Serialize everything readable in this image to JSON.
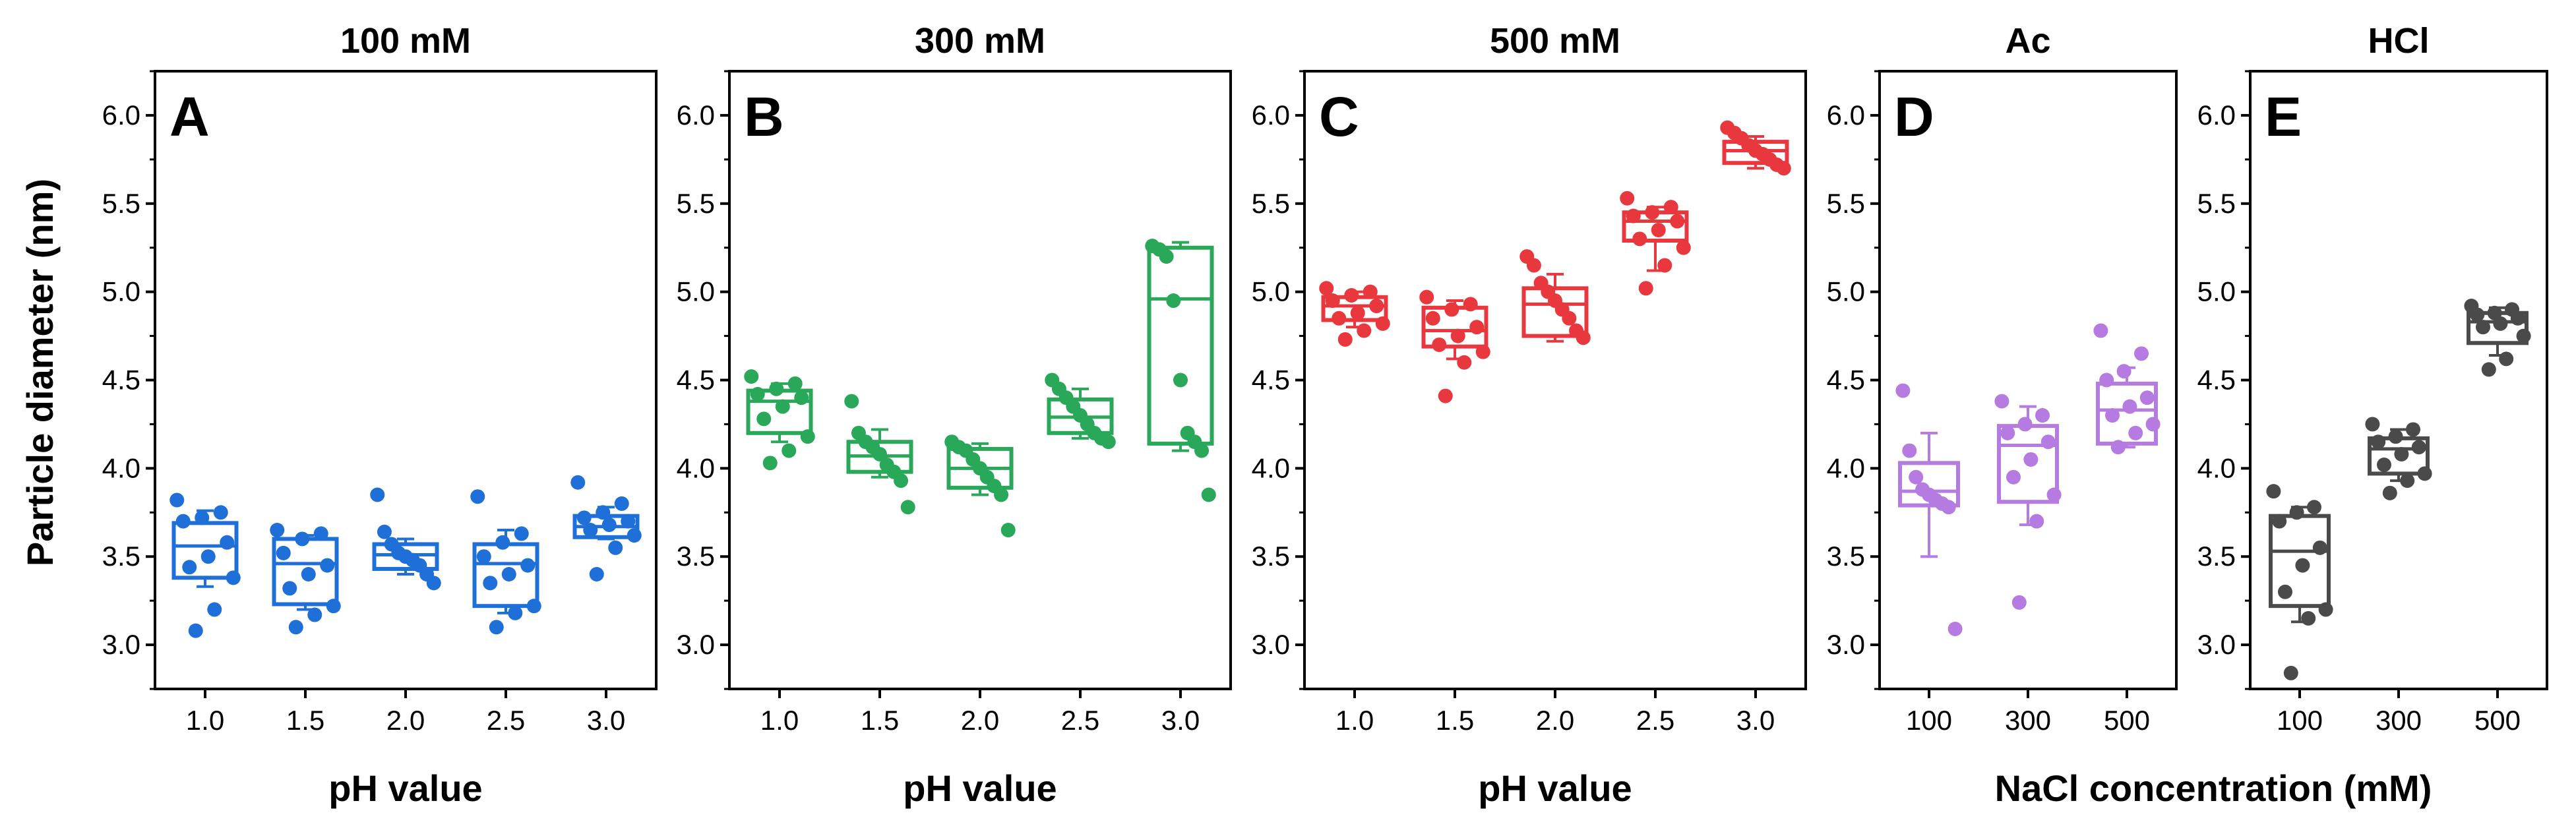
{
  "figure": {
    "ylabel": "Particle diameter (nm)",
    "xlabel_ph": "pH value",
    "xlabel_nacl": "NaCl concentration (mM)"
  },
  "chart_data": [
    {
      "type": "box",
      "panel_label": "A",
      "title": "100 mM",
      "color": "#1f6fd8",
      "xlabel": "pH value",
      "ylabel": "Particle diameter (nm)",
      "ylim": [
        2.75,
        6.25
      ],
      "yticks": [
        "3.0",
        "3.5",
        "4.0",
        "4.5",
        "5.0",
        "5.5",
        "6.0"
      ],
      "categories": [
        "1.0",
        "1.5",
        "2.0",
        "2.5",
        "3.0"
      ],
      "boxes": [
        {
          "q1": 3.38,
          "median": 3.56,
          "q3": 3.69,
          "whisker_low": 3.33,
          "whisker_high": 3.76,
          "points": [
            3.82,
            3.75,
            3.72,
            3.7,
            3.58,
            3.5,
            3.44,
            3.38,
            3.2,
            3.08
          ]
        },
        {
          "q1": 3.23,
          "median": 3.46,
          "q3": 3.6,
          "whisker_low": 3.2,
          "whisker_high": 3.62,
          "points": [
            3.65,
            3.63,
            3.6,
            3.52,
            3.45,
            3.4,
            3.32,
            3.22,
            3.17,
            3.1
          ]
        },
        {
          "q1": 3.43,
          "median": 3.51,
          "q3": 3.57,
          "whisker_low": 3.4,
          "whisker_high": 3.6,
          "points": [
            3.85,
            3.64,
            3.57,
            3.52,
            3.5,
            3.48,
            3.45,
            3.4,
            3.35
          ]
        },
        {
          "q1": 3.22,
          "median": 3.46,
          "q3": 3.57,
          "whisker_low": 3.18,
          "whisker_high": 3.65,
          "points": [
            3.84,
            3.63,
            3.58,
            3.5,
            3.45,
            3.4,
            3.35,
            3.22,
            3.18,
            3.1
          ]
        },
        {
          "q1": 3.61,
          "median": 3.67,
          "q3": 3.73,
          "whisker_low": 3.6,
          "whisker_high": 3.78,
          "points": [
            3.92,
            3.8,
            3.75,
            3.72,
            3.7,
            3.68,
            3.65,
            3.62,
            3.55,
            3.4
          ]
        }
      ]
    },
    {
      "type": "box",
      "panel_label": "B",
      "title": "300 mM",
      "color": "#2aa85a",
      "xlabel": "pH value",
      "ylabel": "",
      "ylim": [
        2.75,
        6.25
      ],
      "yticks": [
        "3.0",
        "3.5",
        "4.0",
        "4.5",
        "5.0",
        "5.5",
        "6.0"
      ],
      "categories": [
        "1.0",
        "1.5",
        "2.0",
        "2.5",
        "3.0"
      ],
      "boxes": [
        {
          "q1": 4.2,
          "median": 4.38,
          "q3": 4.44,
          "whisker_low": 4.15,
          "whisker_high": 4.48,
          "points": [
            4.52,
            4.48,
            4.45,
            4.42,
            4.4,
            4.35,
            4.28,
            4.18,
            4.1,
            4.03
          ]
        },
        {
          "q1": 3.98,
          "median": 4.07,
          "q3": 4.15,
          "whisker_low": 3.95,
          "whisker_high": 4.22,
          "points": [
            4.38,
            4.2,
            4.15,
            4.12,
            4.08,
            4.02,
            3.98,
            3.93,
            3.78
          ]
        },
        {
          "q1": 3.89,
          "median": 4.0,
          "q3": 4.11,
          "whisker_low": 3.85,
          "whisker_high": 4.14,
          "points": [
            4.15,
            4.12,
            4.1,
            4.05,
            4.0,
            3.95,
            3.9,
            3.85,
            3.65
          ]
        },
        {
          "q1": 4.2,
          "median": 4.29,
          "q3": 4.39,
          "whisker_low": 4.17,
          "whisker_high": 4.45,
          "points": [
            4.5,
            4.45,
            4.4,
            4.35,
            4.3,
            4.25,
            4.2,
            4.17,
            4.15
          ]
        },
        {
          "q1": 4.14,
          "median": 4.96,
          "q3": 5.25,
          "whisker_low": 4.1,
          "whisker_high": 5.28,
          "points": [
            5.26,
            5.24,
            5.2,
            4.95,
            4.5,
            4.2,
            4.15,
            4.1,
            3.85
          ]
        }
      ]
    },
    {
      "type": "box",
      "panel_label": "C",
      "title": "500 mM",
      "color": "#e8383d",
      "xlabel": "pH value",
      "ylabel": "",
      "ylim": [
        2.75,
        6.25
      ],
      "yticks": [
        "3.0",
        "3.5",
        "4.0",
        "4.5",
        "5.0",
        "5.5",
        "6.0"
      ],
      "categories": [
        "1.0",
        "1.5",
        "2.0",
        "2.5",
        "3.0"
      ],
      "boxes": [
        {
          "q1": 4.84,
          "median": 4.92,
          "q3": 4.97,
          "whisker_low": 4.8,
          "whisker_high": 5.0,
          "points": [
            5.02,
            5.0,
            4.98,
            4.95,
            4.92,
            4.88,
            4.85,
            4.82,
            4.78,
            4.73
          ]
        },
        {
          "q1": 4.69,
          "median": 4.78,
          "q3": 4.91,
          "whisker_low": 4.62,
          "whisker_high": 4.95,
          "points": [
            4.97,
            4.93,
            4.9,
            4.85,
            4.8,
            4.75,
            4.7,
            4.66,
            4.6,
            4.41
          ]
        },
        {
          "q1": 4.75,
          "median": 4.93,
          "q3": 5.02,
          "whisker_low": 4.72,
          "whisker_high": 5.1,
          "points": [
            5.2,
            5.15,
            5.05,
            5.0,
            4.95,
            4.9,
            4.85,
            4.78,
            4.74
          ]
        },
        {
          "q1": 5.29,
          "median": 5.4,
          "q3": 5.45,
          "whisker_low": 5.12,
          "whisker_high": 5.48,
          "points": [
            5.53,
            5.48,
            5.45,
            5.43,
            5.4,
            5.35,
            5.3,
            5.25,
            5.15,
            5.02
          ]
        },
        {
          "q1": 5.73,
          "median": 5.8,
          "q3": 5.85,
          "whisker_low": 5.7,
          "whisker_high": 5.88,
          "points": [
            5.93,
            5.9,
            5.87,
            5.83,
            5.8,
            5.78,
            5.75,
            5.72,
            5.7
          ]
        }
      ]
    },
    {
      "type": "box",
      "panel_label": "D",
      "title": "Ac",
      "color": "#b57be0",
      "xlabel": "NaCl concentration (mM)",
      "ylabel": "",
      "ylim": [
        2.75,
        6.25
      ],
      "yticks": [
        "3.0",
        "3.5",
        "4.0",
        "4.5",
        "5.0",
        "5.5",
        "6.0"
      ],
      "categories": [
        "100",
        "300",
        "500"
      ],
      "boxes": [
        {
          "q1": 3.79,
          "median": 3.87,
          "q3": 4.03,
          "whisker_low": 3.5,
          "whisker_high": 4.2,
          "points": [
            4.44,
            4.1,
            3.95,
            3.88,
            3.85,
            3.82,
            3.8,
            3.78,
            3.09
          ]
        },
        {
          "q1": 3.81,
          "median": 4.13,
          "q3": 4.24,
          "whisker_low": 3.68,
          "whisker_high": 4.35,
          "points": [
            4.38,
            4.3,
            4.25,
            4.2,
            4.15,
            4.05,
            3.95,
            3.85,
            3.7,
            3.24
          ]
        },
        {
          "q1": 4.14,
          "median": 4.33,
          "q3": 4.48,
          "whisker_low": 4.12,
          "whisker_high": 4.57,
          "points": [
            4.78,
            4.65,
            4.55,
            4.5,
            4.4,
            4.35,
            4.3,
            4.25,
            4.2,
            4.12
          ]
        }
      ]
    },
    {
      "type": "box",
      "panel_label": "E",
      "title": "HCl",
      "color": "#4a4a4a",
      "xlabel": "NaCl concentration (mM)",
      "ylabel": "",
      "ylim": [
        2.75,
        6.25
      ],
      "yticks": [
        "3.0",
        "3.5",
        "4.0",
        "4.5",
        "5.0",
        "5.5",
        "6.0"
      ],
      "categories": [
        "100",
        "300",
        "500"
      ],
      "boxes": [
        {
          "q1": 3.22,
          "median": 3.53,
          "q3": 3.73,
          "whisker_low": 3.13,
          "whisker_high": 3.78,
          "points": [
            3.87,
            3.78,
            3.75,
            3.7,
            3.55,
            3.45,
            3.3,
            3.2,
            3.15,
            2.84
          ]
        },
        {
          "q1": 3.97,
          "median": 4.11,
          "q3": 4.17,
          "whisker_low": 3.93,
          "whisker_high": 4.22,
          "points": [
            4.25,
            4.22,
            4.18,
            4.15,
            4.12,
            4.08,
            4.02,
            3.97,
            3.93,
            3.86
          ]
        },
        {
          "q1": 4.71,
          "median": 4.83,
          "q3": 4.88,
          "whisker_low": 4.64,
          "whisker_high": 4.91,
          "points": [
            4.92,
            4.9,
            4.88,
            4.87,
            4.85,
            4.82,
            4.8,
            4.75,
            4.62,
            4.56
          ]
        }
      ]
    }
  ]
}
